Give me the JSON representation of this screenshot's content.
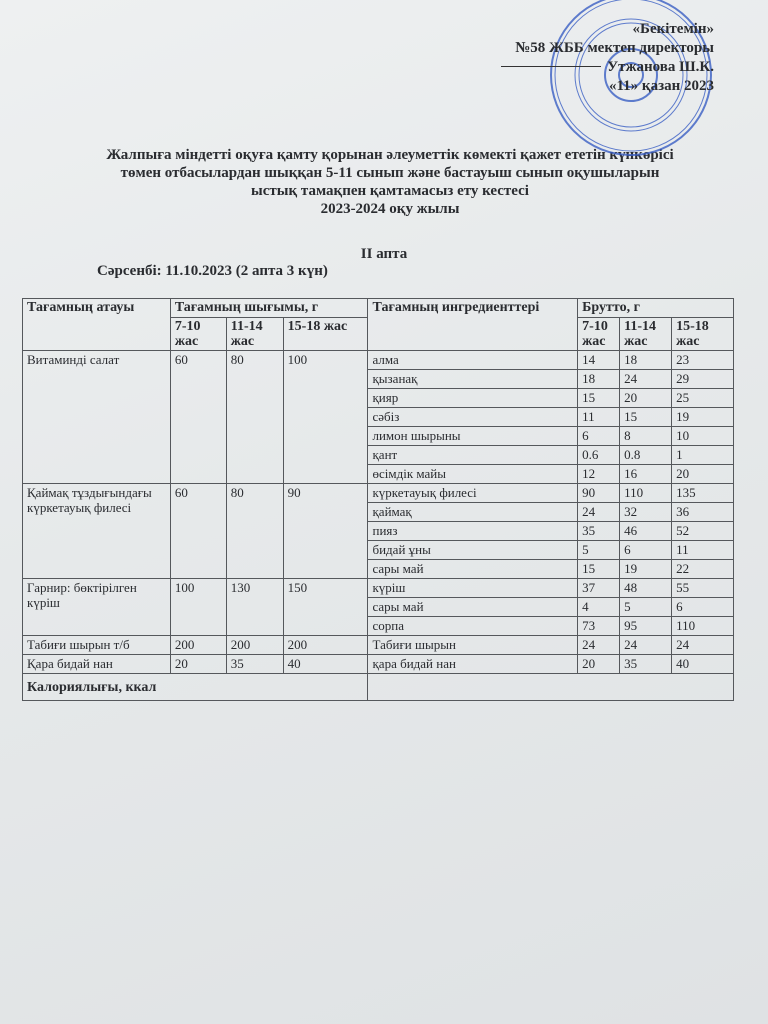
{
  "approval": {
    "line1": "«Бекітемін»",
    "line2": "№58 ЖББ мектеп директоры",
    "line3": "Утжанова Ш.К.",
    "line4": "«11» қазан 2023"
  },
  "stamp_color": "#3a5fc4",
  "title": {
    "line1": "Жалпыға міндетті оқуға қамту қорынан әлеуметтік көмекті қажет ететін күнкөрісі",
    "line2": "төмен отбасылардан шыққан 5-11 сынып және бастауыш сынып оқушыларын",
    "line3": "ыстық тамақпен қамтамасыз ету кестесі",
    "line4": "2023-2024 оқу жылы"
  },
  "week": "ІІ апта",
  "day": "Сәрсенбі: 11.10.2023 (2 апта 3 күн)",
  "table": {
    "headers": {
      "dish": "Тағамның атауы",
      "yield": "Тағамның шығымы, г",
      "ingredients": "Тағамның ингредиенттері",
      "gross": "Брутто, г",
      "ages": [
        "7-10 жас",
        "11-14 жас",
        "15-18 жас"
      ]
    },
    "dishes": [
      {
        "name": "Витаминді салат",
        "yield": [
          "60",
          "80",
          "100"
        ],
        "ingredients": [
          {
            "name": "алма",
            "gross": [
              "14",
              "18",
              "23"
            ]
          },
          {
            "name": "қызанақ",
            "gross": [
              "18",
              "24",
              "29"
            ]
          },
          {
            "name": "қияр",
            "gross": [
              "15",
              "20",
              "25"
            ]
          },
          {
            "name": "сәбіз",
            "gross": [
              "11",
              "15",
              "19"
            ]
          },
          {
            "name": "лимон шырыны",
            "gross": [
              "6",
              "8",
              "10"
            ]
          },
          {
            "name": "қант",
            "gross": [
              "0.6",
              "0.8",
              "1"
            ]
          },
          {
            "name": "өсімдік майы",
            "gross": [
              "12",
              "16",
              "20"
            ]
          }
        ]
      },
      {
        "name": "Қаймақ тұздығындағы күркетауық филесі",
        "yield": [
          "60",
          "80",
          "90"
        ],
        "ingredients": [
          {
            "name": "күркетауық филесі",
            "gross": [
              "90",
              "110",
              "135"
            ]
          },
          {
            "name": "қаймақ",
            "gross": [
              "24",
              "32",
              "36"
            ]
          },
          {
            "name": "пияз",
            "gross": [
              "35",
              "46",
              "52"
            ]
          },
          {
            "name": "бидай ұны",
            "gross": [
              "5",
              "6",
              "11"
            ]
          },
          {
            "name": "сары май",
            "gross": [
              "15",
              "19",
              "22"
            ]
          }
        ]
      },
      {
        "name": "Гарнир: бөктірілген күріш",
        "yield": [
          "100",
          "130",
          "150"
        ],
        "ingredients": [
          {
            "name": "күріш",
            "gross": [
              "37",
              "48",
              "55"
            ]
          },
          {
            "name": "сары май",
            "gross": [
              "4",
              "5",
              "6"
            ]
          },
          {
            "name": "сорпа",
            "gross": [
              "73",
              "95",
              "110"
            ]
          }
        ]
      },
      {
        "name": "Табиғи шырын т/б",
        "yield": [
          "200",
          "200",
          "200"
        ],
        "ingredients": [
          {
            "name": "Табиғи шырын",
            "gross": [
              "24",
              "24",
              "24"
            ]
          }
        ]
      },
      {
        "name": "Қара бидай нан",
        "yield": [
          "20",
          "35",
          "40"
        ],
        "ingredients": [
          {
            "name": "қара бидай нан",
            "gross": [
              "20",
              "35",
              "40"
            ]
          }
        ]
      }
    ],
    "calories_label": "Калориялығы, ккал"
  }
}
